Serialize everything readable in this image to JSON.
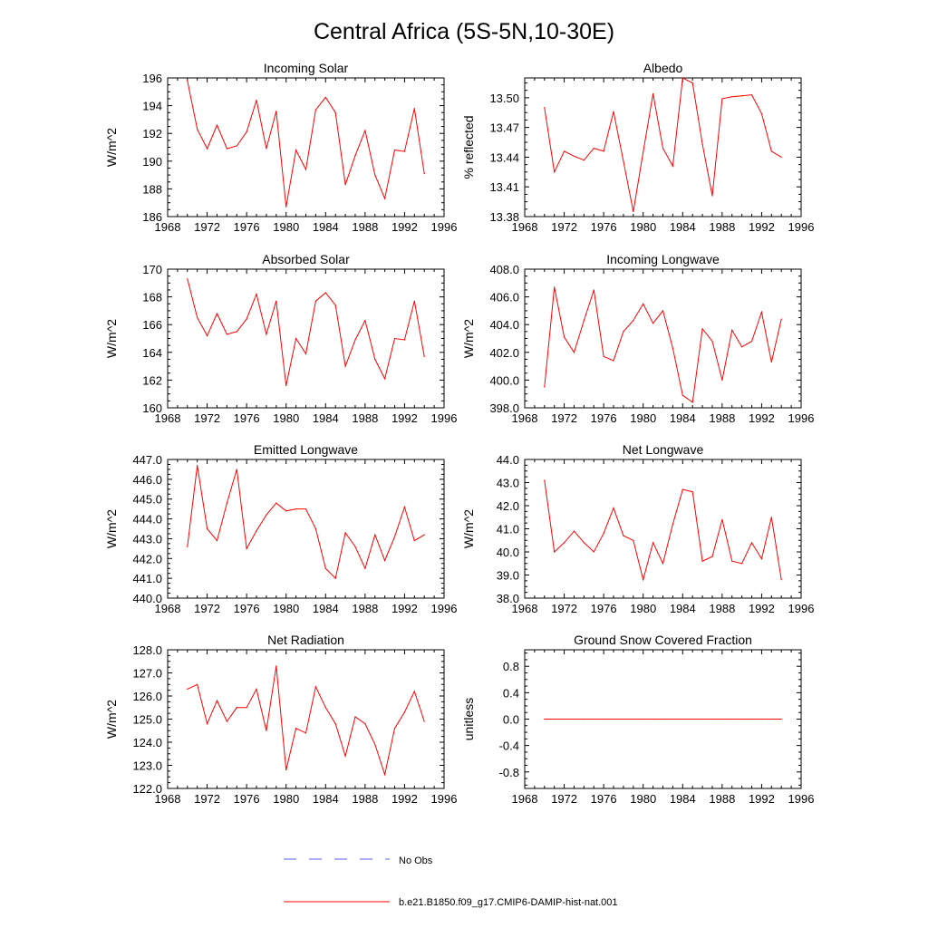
{
  "page_title": "Central Africa (5S-5N,10-30E)",
  "colors": {
    "model_line": "#ff0000",
    "obs_line": "#5a5aff",
    "axes": "#000000"
  },
  "legend": {
    "obs_label": "No Obs",
    "model_label": "b.e21.B1850.f09_g17.CMIP6-DAMIP-hist-nat.001"
  },
  "chart_data": [
    {
      "type": "line",
      "title": "Incoming Solar",
      "ylabel": "W/m^2",
      "xlim": [
        1968,
        1996
      ],
      "ylim": [
        186,
        196
      ],
      "x_ticks": [
        "1968",
        "1972",
        "1976",
        "1980",
        "1984",
        "1988",
        "1992",
        "1996"
      ],
      "y_ticks": [
        "186",
        "188",
        "190",
        "192",
        "194",
        "196"
      ],
      "x": [
        1970,
        1971,
        1972,
        1973,
        1974,
        1975,
        1976,
        1977,
        1978,
        1979,
        1980,
        1981,
        1982,
        1983,
        1984,
        1985,
        1986,
        1987,
        1988,
        1989,
        1990,
        1991,
        1992,
        1993,
        1994
      ],
      "values": [
        195.8,
        192.3,
        190.9,
        192.6,
        190.9,
        191.1,
        192.1,
        194.4,
        190.9,
        193.6,
        186.7,
        190.8,
        189.4,
        193.7,
        194.6,
        193.5,
        188.3,
        190.4,
        192.2,
        189.0,
        187.3,
        190.8,
        190.7,
        193.8,
        189.1
      ]
    },
    {
      "type": "line",
      "title": "Albedo",
      "ylabel": "% reflected",
      "xlim": [
        1968,
        1996
      ],
      "ylim": [
        13.38,
        13.52
      ],
      "x_ticks": [
        "1968",
        "1972",
        "1976",
        "1980",
        "1984",
        "1988",
        "1992",
        "1996"
      ],
      "y_ticks": [
        "13.38",
        "13.41",
        "13.44",
        "13.47",
        "13.50"
      ],
      "x": [
        1970,
        1971,
        1972,
        1973,
        1974,
        1975,
        1976,
        1977,
        1978,
        1979,
        1980,
        1981,
        1982,
        1983,
        1984,
        1985,
        1986,
        1987,
        1988,
        1989,
        1990,
        1991,
        1992,
        1993,
        1994
      ],
      "values": [
        13.49,
        13.425,
        13.446,
        13.441,
        13.437,
        13.449,
        13.446,
        13.486,
        13.436,
        13.385,
        13.445,
        13.504,
        13.449,
        13.431,
        13.52,
        13.515,
        13.453,
        13.401,
        13.499,
        13.501,
        13.502,
        13.503,
        13.484,
        13.446,
        13.44
      ]
    },
    {
      "type": "line",
      "title": "Absorbed Solar",
      "ylabel": "W/m^2",
      "xlim": [
        1968,
        1996
      ],
      "ylim": [
        160,
        170
      ],
      "x_ticks": [
        "1968",
        "1972",
        "1976",
        "1980",
        "1984",
        "1988",
        "1992",
        "1996"
      ],
      "y_ticks": [
        "160",
        "162",
        "164",
        "166",
        "168",
        "170"
      ],
      "x": [
        1970,
        1971,
        1972,
        1973,
        1974,
        1975,
        1976,
        1977,
        1978,
        1979,
        1980,
        1981,
        1982,
        1983,
        1984,
        1985,
        1986,
        1987,
        1988,
        1989,
        1990,
        1991,
        1992,
        1993,
        1994
      ],
      "values": [
        169.3,
        166.5,
        165.2,
        166.8,
        165.3,
        165.5,
        166.4,
        168.2,
        165.3,
        167.7,
        161.6,
        165.0,
        163.9,
        167.7,
        168.3,
        167.4,
        163.0,
        164.9,
        166.3,
        163.5,
        162.1,
        165.0,
        164.9,
        167.7,
        163.7
      ]
    },
    {
      "type": "line",
      "title": "Incoming Longwave",
      "ylabel": "W/m^2",
      "xlim": [
        1968,
        1996
      ],
      "ylim": [
        398,
        408
      ],
      "x_ticks": [
        "1968",
        "1972",
        "1976",
        "1980",
        "1984",
        "1988",
        "1992",
        "1996"
      ],
      "y_ticks": [
        "398.0",
        "400.0",
        "402.0",
        "404.0",
        "406.0",
        "408.0"
      ],
      "x": [
        1970,
        1971,
        1972,
        1973,
        1974,
        1975,
        1976,
        1977,
        1978,
        1979,
        1980,
        1981,
        1982,
        1983,
        1984,
        1985,
        1986,
        1987,
        1988,
        1989,
        1990,
        1991,
        1992,
        1993,
        1994
      ],
      "values": [
        399.5,
        406.7,
        403.1,
        402.0,
        404.3,
        406.5,
        401.7,
        401.4,
        403.5,
        404.3,
        405.5,
        404.1,
        405.0,
        402.3,
        398.9,
        398.4,
        403.7,
        402.8,
        400.0,
        403.6,
        402.4,
        402.8,
        404.9,
        401.3,
        404.4
      ]
    },
    {
      "type": "line",
      "title": "Emitted Longwave",
      "ylabel": "W/m^2",
      "xlim": [
        1968,
        1996
      ],
      "ylim": [
        440,
        447
      ],
      "x_ticks": [
        "1968",
        "1972",
        "1976",
        "1980",
        "1984",
        "1988",
        "1992",
        "1996"
      ],
      "y_ticks": [
        "440.0",
        "441.0",
        "442.0",
        "443.0",
        "444.0",
        "445.0",
        "446.0",
        "447.0"
      ],
      "x": [
        1970,
        1971,
        1972,
        1973,
        1974,
        1975,
        1976,
        1977,
        1978,
        1979,
        1980,
        1981,
        1982,
        1983,
        1984,
        1985,
        1986,
        1987,
        1988,
        1989,
        1990,
        1991,
        1992,
        1993,
        1994
      ],
      "values": [
        442.6,
        446.7,
        443.5,
        442.9,
        444.8,
        446.5,
        442.5,
        443.4,
        444.2,
        444.8,
        444.4,
        444.5,
        444.5,
        443.5,
        441.5,
        441.0,
        443.3,
        442.6,
        441.5,
        443.2,
        441.9,
        443.1,
        444.6,
        442.9,
        443.2
      ]
    },
    {
      "type": "line",
      "title": "Net Longwave",
      "ylabel": "W/m^2",
      "xlim": [
        1968,
        1996
      ],
      "ylim": [
        38,
        44
      ],
      "x_ticks": [
        "1968",
        "1972",
        "1976",
        "1980",
        "1984",
        "1988",
        "1992",
        "1996"
      ],
      "y_ticks": [
        "38.0",
        "39.0",
        "40.0",
        "41.0",
        "42.0",
        "43.0",
        "44.0"
      ],
      "x": [
        1970,
        1971,
        1972,
        1973,
        1974,
        1975,
        1976,
        1977,
        1978,
        1979,
        1980,
        1981,
        1982,
        1983,
        1984,
        1985,
        1986,
        1987,
        1988,
        1989,
        1990,
        1991,
        1992,
        1993,
        1994
      ],
      "values": [
        43.1,
        40.0,
        40.4,
        40.9,
        40.4,
        40.0,
        40.8,
        41.9,
        40.7,
        40.5,
        38.8,
        40.4,
        39.5,
        41.2,
        42.7,
        42.6,
        39.6,
        39.8,
        41.4,
        39.6,
        39.5,
        40.4,
        39.7,
        41.5,
        38.8
      ]
    },
    {
      "type": "line",
      "title": "Net Radiation",
      "ylabel": "W/m^2",
      "xlim": [
        1968,
        1996
      ],
      "ylim": [
        122,
        128
      ],
      "x_ticks": [
        "1968",
        "1972",
        "1976",
        "1980",
        "1984",
        "1988",
        "1992",
        "1996"
      ],
      "y_ticks": [
        "122.0",
        "123.0",
        "124.0",
        "125.0",
        "126.0",
        "127.0",
        "128.0"
      ],
      "x": [
        1970,
        1971,
        1972,
        1973,
        1974,
        1975,
        1976,
        1977,
        1978,
        1979,
        1980,
        1981,
        1982,
        1983,
        1984,
        1985,
        1986,
        1987,
        1988,
        1989,
        1990,
        1991,
        1992,
        1993,
        1994
      ],
      "values": [
        126.3,
        126.5,
        124.8,
        125.8,
        124.9,
        125.5,
        125.5,
        126.3,
        124.5,
        127.3,
        122.8,
        124.6,
        124.4,
        126.4,
        125.5,
        124.8,
        123.4,
        125.1,
        124.8,
        123.9,
        122.6,
        124.6,
        125.3,
        126.2,
        124.9
      ]
    },
    {
      "type": "line",
      "title": "Ground Snow Covered Fraction",
      "ylabel": "unitless",
      "xlim": [
        1968,
        1996
      ],
      "ylim": [
        -1.05,
        1.05
      ],
      "x_ticks": [
        "1968",
        "1972",
        "1976",
        "1980",
        "1984",
        "1988",
        "1992",
        "1996"
      ],
      "y_ticks": [
        "-0.8",
        "-0.4",
        "0.0",
        "0.4",
        "0.8"
      ],
      "x": [
        1970,
        1971,
        1972,
        1973,
        1974,
        1975,
        1976,
        1977,
        1978,
        1979,
        1980,
        1981,
        1982,
        1983,
        1984,
        1985,
        1986,
        1987,
        1988,
        1989,
        1990,
        1991,
        1992,
        1993,
        1994
      ],
      "values": [
        0,
        0,
        0,
        0,
        0,
        0,
        0,
        0,
        0,
        0,
        0,
        0,
        0,
        0,
        0,
        0,
        0,
        0,
        0,
        0,
        0,
        0,
        0,
        0,
        0
      ]
    }
  ]
}
